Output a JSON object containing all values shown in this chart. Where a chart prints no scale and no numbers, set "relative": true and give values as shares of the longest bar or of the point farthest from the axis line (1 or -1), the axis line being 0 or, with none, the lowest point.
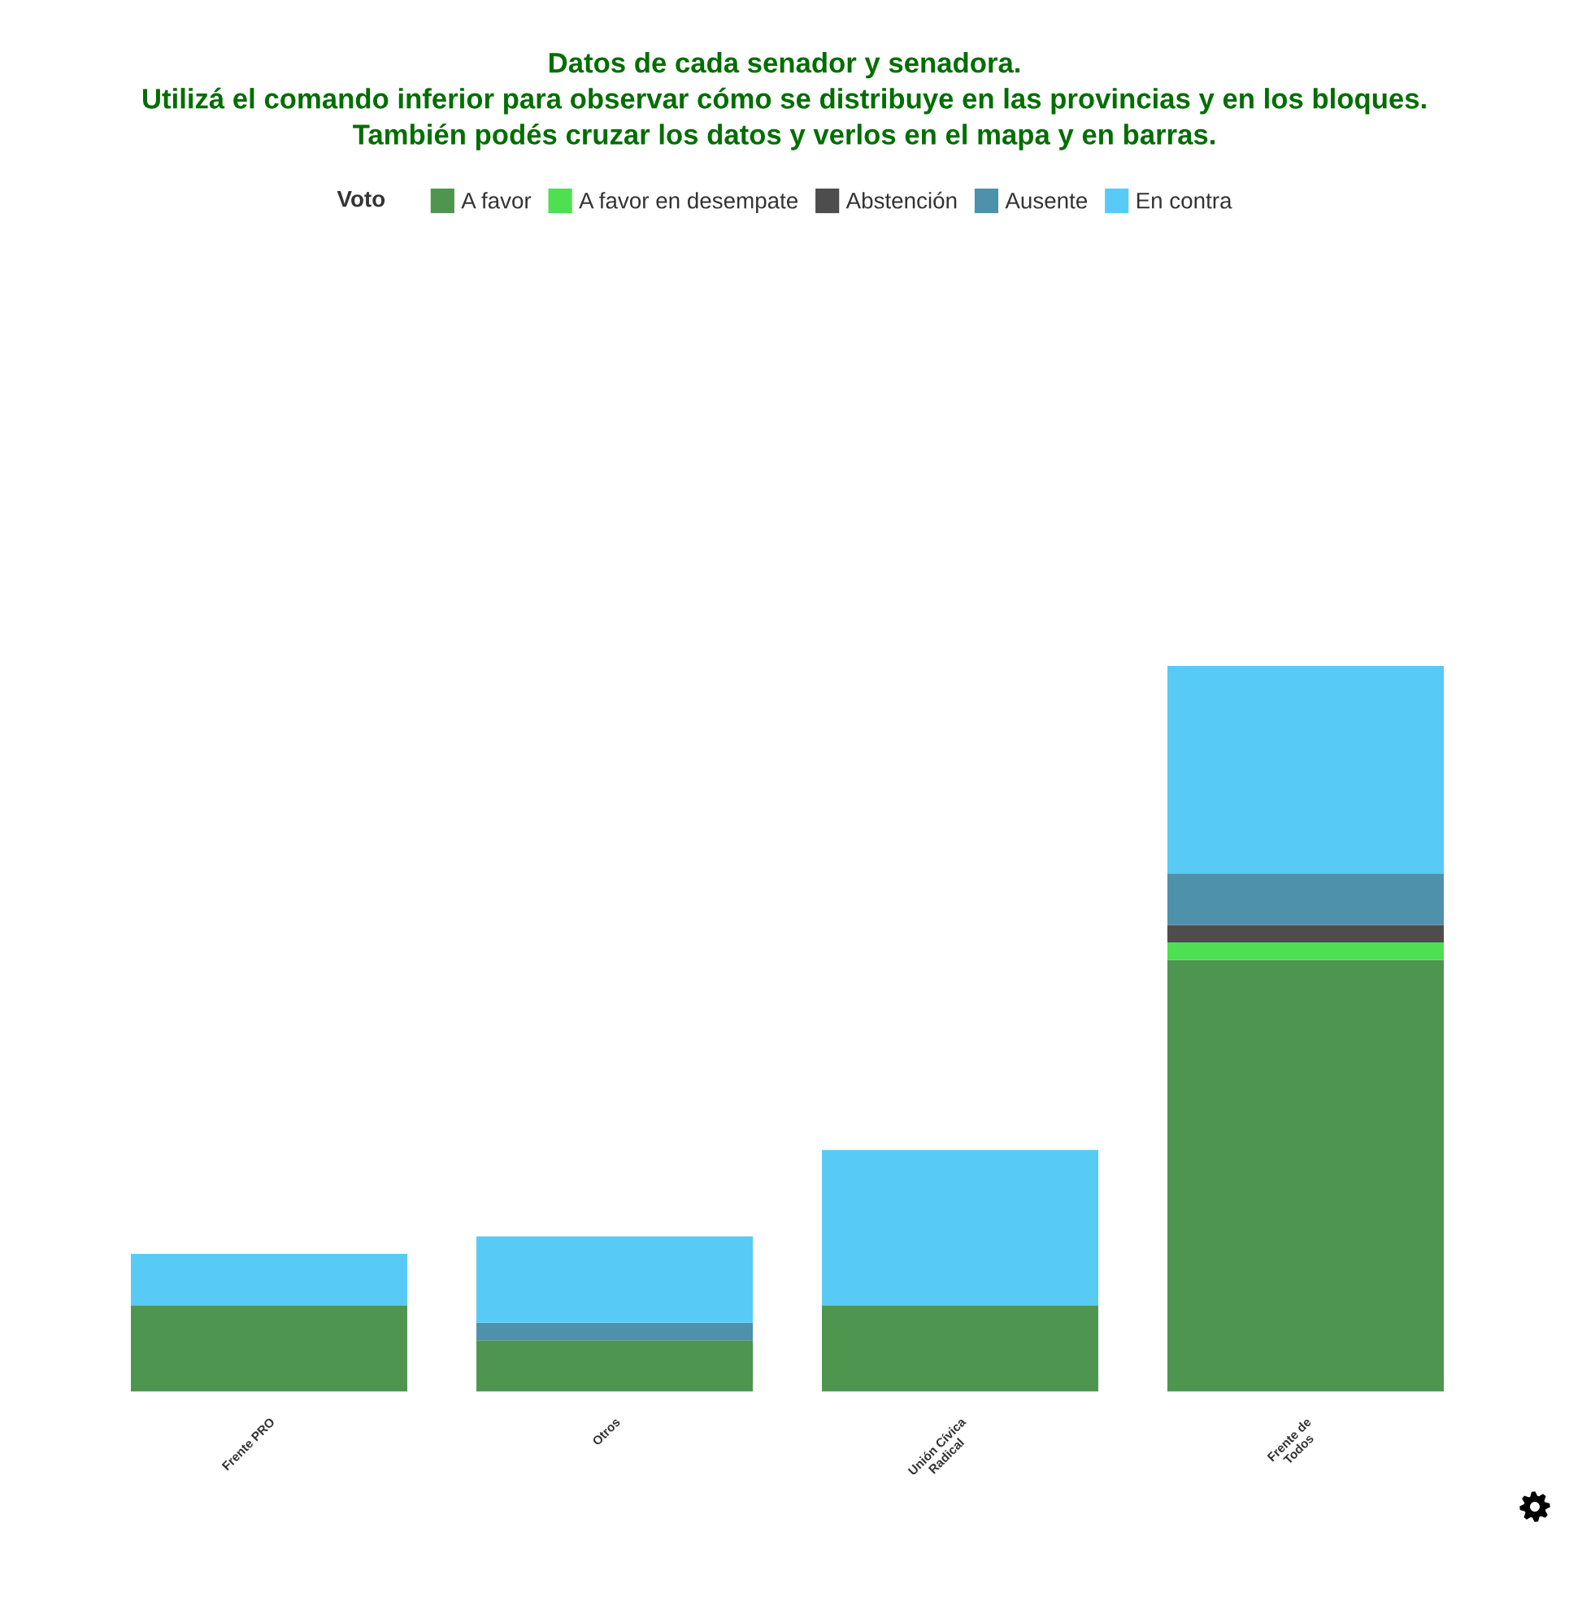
{
  "chart_data": {
    "type": "bar",
    "title": "Datos de cada senador y senadora.\nUtilizá el comando inferior para observar cómo se distribuye en las provincias y en los bloques.\nTambién podés cruzar los datos y verlos en el mapa y en barras.",
    "legend_title": "Voto",
    "legend": "top",
    "stacked": true,
    "relative": true,
    "categories": [
      "Frente PRO",
      "Otros",
      "Unión Cívica\nRadical",
      "Frente de\nTodos"
    ],
    "series": [
      {
        "name": "A favor",
        "color": "#4e9650",
        "values": [
          0.119,
          0.071,
          0.119,
          0.595
        ]
      },
      {
        "name": "A favor en desempate",
        "color": "#4ee052",
        "values": [
          0,
          0,
          0,
          0.024
        ]
      },
      {
        "name": "Abstención",
        "color": "#4d4d4d",
        "values": [
          0,
          0,
          0,
          0.024
        ]
      },
      {
        "name": "Ausente",
        "color": "#4e91ab",
        "values": [
          0,
          0.024,
          0,
          0.071
        ]
      },
      {
        "name": "En contra",
        "color": "#57cbf5",
        "values": [
          0.071,
          0.119,
          0.214,
          0.286
        ]
      }
    ]
  }
}
